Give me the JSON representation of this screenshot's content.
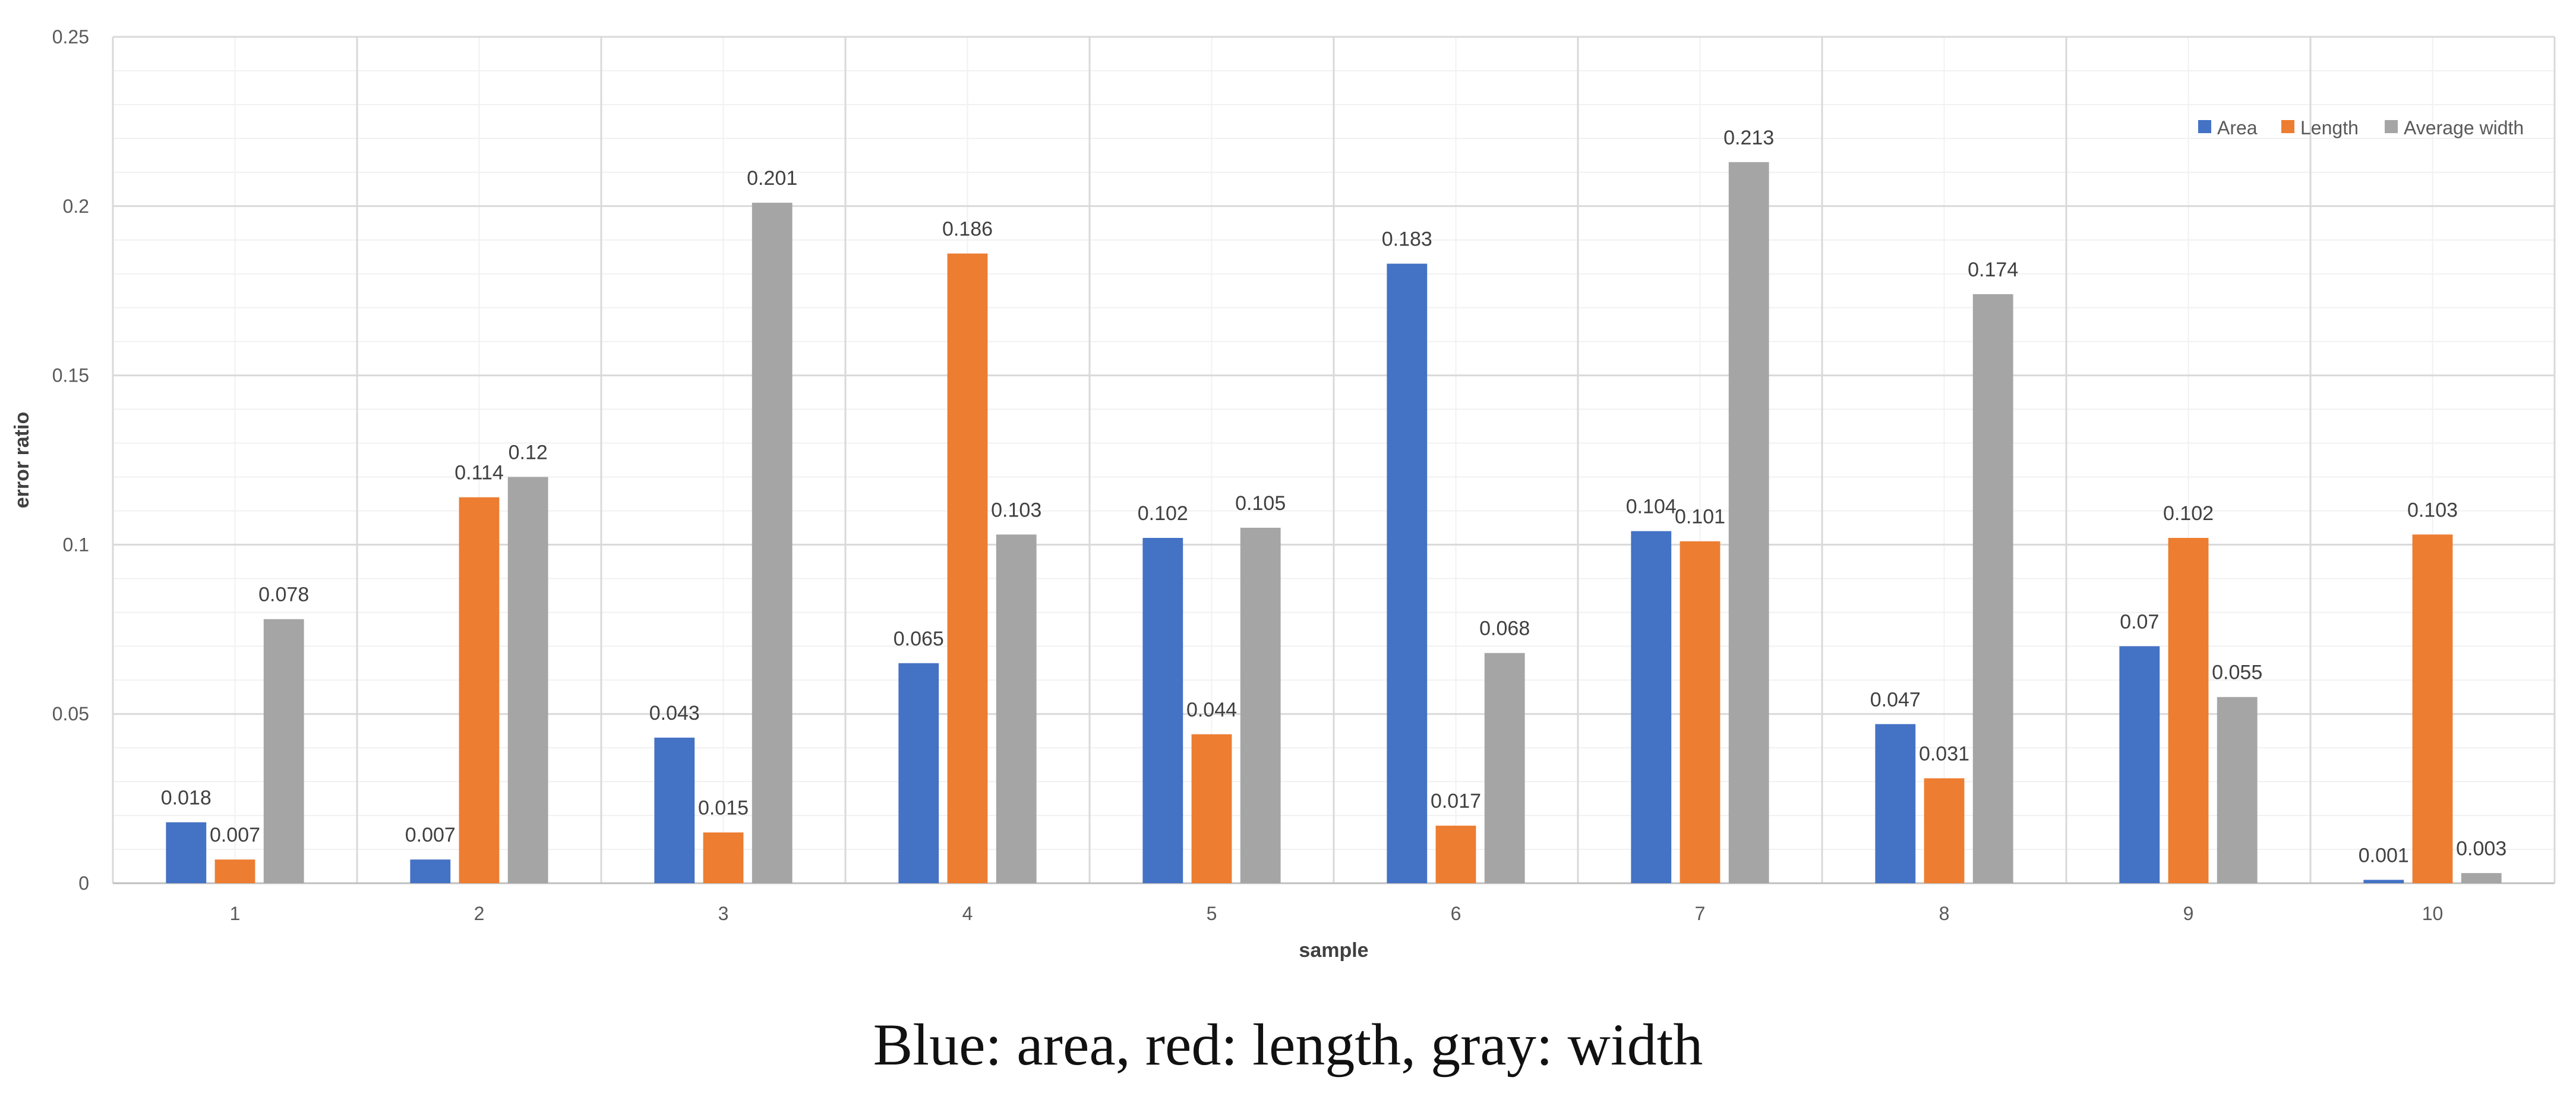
{
  "chart_data": {
    "type": "bar",
    "title": "",
    "xlabel": "sample",
    "ylabel": "error ratio",
    "categories": [
      "1",
      "2",
      "3",
      "4",
      "5",
      "6",
      "7",
      "8",
      "9",
      "10"
    ],
    "series": [
      {
        "name": "Area",
        "color": "#4472c4",
        "values": [
          0.018,
          0.007,
          0.043,
          0.065,
          0.102,
          0.183,
          0.104,
          0.047,
          0.07,
          0.001
        ]
      },
      {
        "name": "Length",
        "color": "#ed7d31",
        "values": [
          0.007,
          0.114,
          0.015,
          0.186,
          0.044,
          0.017,
          0.101,
          0.031,
          0.102,
          0.103
        ]
      },
      {
        "name": "Average width",
        "color": "#a5a5a5",
        "values": [
          0.078,
          0.12,
          0.201,
          0.103,
          0.105,
          0.068,
          0.213,
          0.174,
          0.055,
          0.003
        ]
      }
    ],
    "ylim": [
      0,
      0.25
    ],
    "yticks": [
      "0",
      "0.05",
      "0.1",
      "0.15",
      "0.2",
      "0.25"
    ],
    "grid": true,
    "legend_position": "top-right"
  },
  "caption": "Blue: area, red: length, gray: width"
}
